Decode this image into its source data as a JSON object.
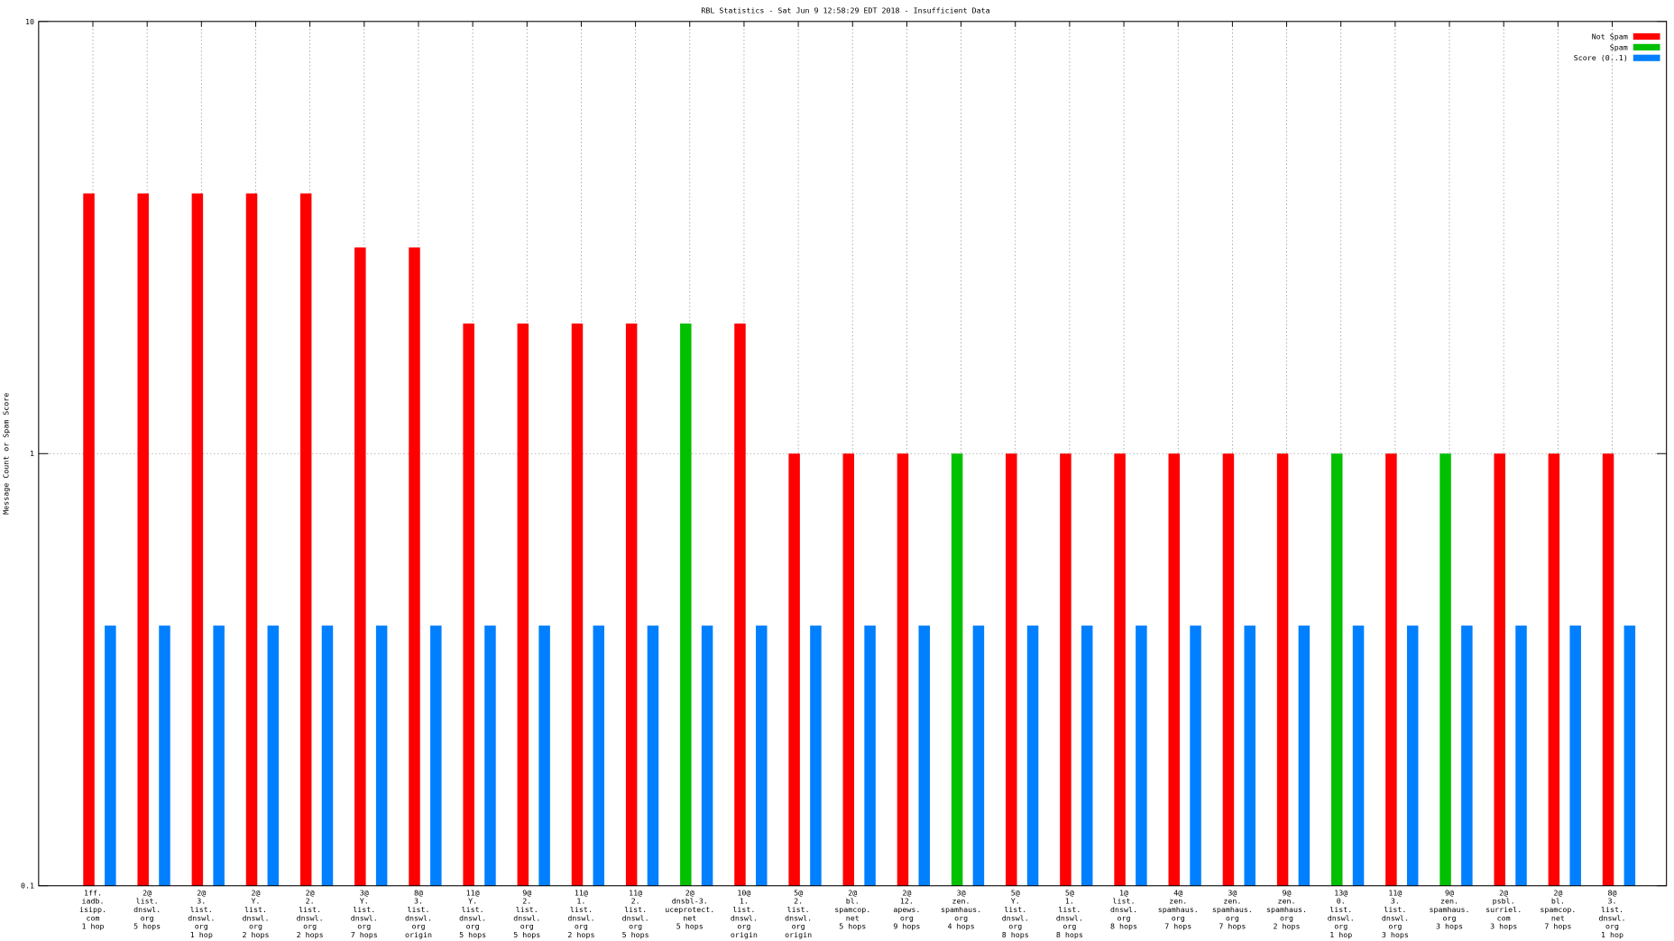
{
  "chart_data": {
    "type": "bar",
    "title": "RBL Statistics - Sat Jun  9 12:58:29 EDT 2018 - Insufficient Data",
    "y_label": "Message Count or Spam Score",
    "log_y": true,
    "grid": true,
    "legend": "top-right",
    "ylim": [
      0.1,
      10
    ],
    "yticks": [
      0.1,
      1,
      10
    ],
    "categories": [
      [
        "1ff.",
        "iadb.",
        "isipp.",
        "com",
        "1 hop"
      ],
      [
        "2@",
        "list.",
        "dnswl.",
        "org",
        "5 hops"
      ],
      [
        "2@",
        "3.",
        "list.",
        "dnswl.",
        "org",
        "1 hop"
      ],
      [
        "2@",
        "Y.",
        "list.",
        "dnswl.",
        "org",
        "2 hops"
      ],
      [
        "2@",
        "2.",
        "list.",
        "dnswl.",
        "org",
        "2 hops"
      ],
      [
        "3@",
        "Y.",
        "list.",
        "dnswl.",
        "org",
        "7 hops"
      ],
      [
        "8@",
        "3.",
        "list.",
        "dnswl.",
        "org",
        "origin"
      ],
      [
        "11@",
        "Y.",
        "list.",
        "dnswl.",
        "org",
        "5 hops"
      ],
      [
        "9@",
        "2.",
        "list.",
        "dnswl.",
        "org",
        "5 hops"
      ],
      [
        "11@",
        "1.",
        "list.",
        "dnswl.",
        "org",
        "2 hops"
      ],
      [
        "11@",
        "2.",
        "list.",
        "dnswl.",
        "org",
        "5 hops"
      ],
      [
        "2@",
        "dnsbl-3.",
        "uceprotect.",
        "net",
        "5 hops"
      ],
      [
        "10@",
        "1.",
        "list.",
        "dnswl.",
        "org",
        "origin"
      ],
      [
        "5@",
        "2.",
        "list.",
        "dnswl.",
        "org",
        "origin"
      ],
      [
        "2@",
        "bl.",
        "spamcop.",
        "net",
        "5 hops"
      ],
      [
        "2@",
        "12.",
        "apews.",
        "org",
        "9 hops"
      ],
      [
        "3@",
        "zen.",
        "spamhaus.",
        "org",
        "4 hops"
      ],
      [
        "5@",
        "Y.",
        "list.",
        "dnswl.",
        "org",
        "8 hops"
      ],
      [
        "5@",
        "1.",
        "list.",
        "dnswl.",
        "org",
        "8 hops"
      ],
      [
        "1@",
        "list.",
        "dnswl.",
        "org",
        "8 hops"
      ],
      [
        "4@",
        "zen.",
        "spamhaus.",
        "org",
        "7 hops"
      ],
      [
        "3@",
        "zen.",
        "spamhaus.",
        "org",
        "7 hops"
      ],
      [
        "9@",
        "zen.",
        "spamhaus.",
        "org",
        "2 hops"
      ],
      [
        "13@",
        "0.",
        "list.",
        "dnswl.",
        "org",
        "1 hop"
      ],
      [
        "11@",
        "3.",
        "list.",
        "dnswl.",
        "org",
        "3 hops"
      ],
      [
        "9@",
        "zen.",
        "spamhaus.",
        "org",
        "3 hops"
      ],
      [
        "2@",
        "psbl.",
        "surriel.",
        "com",
        "3 hops"
      ],
      [
        "2@",
        "bl.",
        "spamcop.",
        "net",
        "7 hops"
      ],
      [
        "8@",
        "3.",
        "list.",
        "dnswl.",
        "org",
        "1 hop"
      ]
    ],
    "series": [
      {
        "name": "Not Spam",
        "color": "#ff0000",
        "values": [
          4,
          4,
          4,
          4,
          4,
          3,
          3,
          2,
          2,
          2,
          2,
          null,
          2,
          1,
          1,
          1,
          null,
          1,
          1,
          1,
          1,
          1,
          1,
          null,
          1,
          null,
          1,
          1,
          1
        ]
      },
      {
        "name": "Spam",
        "color": "#00c000",
        "values": [
          null,
          null,
          null,
          null,
          null,
          null,
          null,
          null,
          null,
          null,
          null,
          2,
          null,
          null,
          null,
          null,
          1,
          null,
          null,
          null,
          null,
          null,
          null,
          1,
          null,
          1,
          null,
          null,
          null
        ]
      },
      {
        "name": "Score (0..1)",
        "color": "#0080ff",
        "values": [
          0.4,
          0.4,
          0.4,
          0.4,
          0.4,
          0.4,
          0.4,
          0.4,
          0.4,
          0.4,
          0.4,
          0.4,
          0.4,
          0.4,
          0.4,
          0.4,
          0.4,
          0.4,
          0.4,
          0.4,
          0.4,
          0.4,
          0.4,
          0.4,
          0.4,
          0.4,
          0.4,
          0.4,
          0.4
        ]
      }
    ]
  }
}
